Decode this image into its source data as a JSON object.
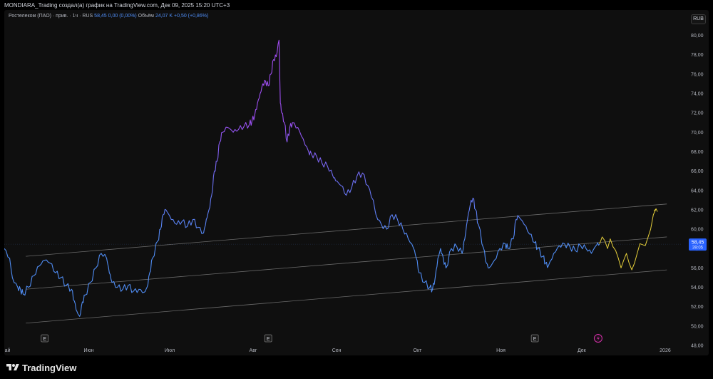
{
  "header": {
    "title": "MONDIARA_Trading создал(а) график на TradingView.com, Дек 09, 2025 15:20 UTC+3"
  },
  "legend": {
    "symbol": "Ростелеком (ПАО) · прив. · 1ч · RUS",
    "price": "58,45 0,00 (0,00%)",
    "volume_label": "Объём",
    "volume": "24,07 K +0,50 (+0,86%)"
  },
  "currency": "RUB",
  "footer": {
    "brand": "TradingView"
  },
  "colors": {
    "background": "#0f0f0f",
    "price_blue": "#4f8df5",
    "price_purple": "#a54bf3",
    "projection": "#e5cf3a",
    "channel": "#6a6a6a",
    "marker": "#d130a8",
    "last_price_badge": "#2962ff"
  },
  "chart_data": {
    "type": "line",
    "title": "",
    "xlabel": "",
    "ylabel": "",
    "ylim": [
      48,
      81
    ],
    "y_ticks": [
      "48,00",
      "50,00",
      "52,00",
      "54,00",
      "56,00",
      "58,00",
      "60,00",
      "62,00",
      "64,00",
      "66,00",
      "68,00",
      "70,00",
      "72,00",
      "74,00",
      "76,00",
      "78,00",
      "80,00"
    ],
    "x_ticks": [
      {
        "label": "Май",
        "t": 0.4
      },
      {
        "label": "Июн",
        "t": 31.4
      },
      {
        "label": "Июл",
        "t": 61.4
      },
      {
        "label": "Авг",
        "t": 92.4
      },
      {
        "label": "Сен",
        "t": 123.4
      },
      {
        "label": "Окт",
        "t": 153.4
      },
      {
        "label": "Ноя",
        "t": 184.4
      },
      {
        "label": "Дек",
        "t": 214.4
      },
      {
        "label": "2026",
        "t": 245.4
      }
    ],
    "series": [
      {
        "values": [
          [
            0,
            58
          ],
          [
            2,
            57
          ],
          [
            3,
            55
          ],
          [
            5,
            54
          ],
          [
            6,
            53.8
          ],
          [
            7,
            53.3
          ],
          [
            9,
            54
          ],
          [
            11,
            55.2
          ],
          [
            13,
            56.2
          ],
          [
            15,
            56.8
          ],
          [
            17,
            56.5
          ],
          [
            19,
            55.5
          ],
          [
            21,
            55
          ],
          [
            23,
            54.2
          ],
          [
            25,
            53.8
          ],
          [
            26,
            52.6
          ],
          [
            27,
            51.5
          ],
          [
            28,
            51
          ],
          [
            29,
            52.5
          ],
          [
            30,
            53.2
          ],
          [
            32,
            54.5
          ],
          [
            34,
            56
          ],
          [
            36,
            57.5
          ],
          [
            38,
            57
          ],
          [
            39,
            55.5
          ],
          [
            40,
            54.5
          ],
          [
            42,
            54
          ],
          [
            44,
            53.8
          ],
          [
            46,
            54.2
          ],
          [
            48,
            53.6
          ],
          [
            50,
            53.8
          ],
          [
            52,
            53.5
          ],
          [
            53,
            54
          ],
          [
            54,
            55.5
          ],
          [
            55,
            57
          ],
          [
            57,
            58.8
          ],
          [
            58,
            60
          ],
          [
            59,
            61.5
          ],
          [
            60,
            62
          ],
          [
            62,
            61
          ],
          [
            64,
            60.5
          ],
          [
            66,
            60.8
          ],
          [
            68,
            60.3
          ],
          [
            70,
            61
          ],
          [
            72,
            60.2
          ],
          [
            74,
            59.6
          ],
          [
            75,
            61
          ],
          [
            76,
            62
          ],
          [
            77,
            63.5
          ],
          [
            78,
            66
          ],
          [
            79,
            67
          ],
          [
            80,
            69
          ],
          [
            81,
            70
          ],
          [
            83,
            70.5
          ],
          [
            85,
            70
          ],
          [
            87,
            70.3
          ],
          [
            89,
            70.6
          ],
          [
            91,
            70.8
          ],
          [
            92,
            71.2
          ],
          [
            93,
            71.8
          ],
          [
            94,
            73
          ],
          [
            95,
            74
          ],
          [
            96,
            75
          ],
          [
            97,
            75.3
          ],
          [
            98,
            74.8
          ],
          [
            99,
            76
          ],
          [
            100,
            77.5
          ],
          [
            101,
            77.8
          ],
          [
            102,
            79.5
          ],
          [
            102.5,
            73
          ],
          [
            103,
            72
          ],
          [
            104,
            71
          ],
          [
            105,
            69
          ],
          [
            106,
            70.5
          ],
          [
            107,
            71
          ],
          [
            109,
            70.5
          ],
          [
            111,
            69.3
          ],
          [
            113,
            68
          ],
          [
            114,
            67.8
          ],
          [
            116,
            67.5
          ],
          [
            118,
            66.8
          ],
          [
            120,
            66.5
          ],
          [
            122,
            65.5
          ],
          [
            123,
            65
          ],
          [
            125,
            64.5
          ],
          [
            127,
            63.5
          ],
          [
            129,
            64.3
          ],
          [
            131,
            65.5
          ],
          [
            133,
            65.8
          ],
          [
            135,
            64.5
          ],
          [
            137,
            63
          ],
          [
            138,
            61.5
          ],
          [
            140,
            60.5
          ],
          [
            142,
            60
          ],
          [
            144,
            61.5
          ],
          [
            146,
            61
          ],
          [
            148,
            60
          ],
          [
            150,
            59
          ],
          [
            152,
            58
          ],
          [
            153,
            57
          ],
          [
            154,
            55.5
          ],
          [
            156,
            54.5
          ],
          [
            158,
            54
          ],
          [
            159,
            53.8
          ],
          [
            160,
            55
          ],
          [
            161,
            57
          ],
          [
            162,
            58
          ],
          [
            163,
            57
          ],
          [
            164,
            56
          ],
          [
            166,
            58
          ],
          [
            168,
            58.2
          ],
          [
            170,
            57.5
          ],
          [
            171,
            59
          ],
          [
            172,
            61
          ],
          [
            173,
            62.5
          ],
          [
            174,
            63.2
          ],
          [
            175,
            62
          ],
          [
            176,
            60.5
          ],
          [
            178,
            58
          ],
          [
            179,
            56.5
          ],
          [
            180,
            56
          ],
          [
            182,
            56.8
          ],
          [
            184,
            58
          ],
          [
            186,
            58.5
          ],
          [
            187,
            58
          ],
          [
            189,
            59
          ],
          [
            190,
            61
          ],
          [
            191,
            61.3
          ],
          [
            193,
            60.5
          ],
          [
            195,
            59.5
          ],
          [
            197,
            58.6
          ],
          [
            198,
            58
          ],
          [
            200,
            57.2
          ],
          [
            201,
            56.5
          ],
          [
            202,
            56.2
          ],
          [
            204,
            57.5
          ],
          [
            206,
            58.3
          ],
          [
            208,
            58.5
          ],
          [
            210,
            58.2
          ],
          [
            212,
            57.8
          ],
          [
            214,
            58.3
          ],
          [
            216,
            58
          ],
          [
            218,
            57.5
          ],
          [
            220,
            58.4
          ],
          [
            221,
            58.45
          ]
        ]
      },
      {
        "values": [
          [
            221,
            58.45
          ],
          [
            222,
            59.2
          ],
          [
            223,
            58.8
          ],
          [
            224,
            58
          ],
          [
            225,
            59
          ],
          [
            226,
            58.2
          ],
          [
            227,
            57.8
          ],
          [
            228,
            57
          ],
          [
            229,
            56
          ],
          [
            230,
            56.8
          ],
          [
            231,
            57.5
          ],
          [
            232,
            56.5
          ],
          [
            233,
            55.8
          ],
          [
            234,
            56.5
          ],
          [
            235,
            57.5
          ],
          [
            236,
            58.5
          ],
          [
            238,
            58.3
          ],
          [
            240,
            60
          ],
          [
            241,
            61.5
          ],
          [
            242,
            62.1
          ]
        ]
      }
    ],
    "channel_lines": [
      {
        "from": [
          8,
          57.2
        ],
        "to": [
          246,
          62.6
        ]
      },
      {
        "from": [
          8,
          53.8
        ],
        "to": [
          246,
          59.2
        ]
      },
      {
        "from": [
          8,
          50.3
        ],
        "to": [
          246,
          55.8
        ]
      }
    ],
    "last_price": {
      "value": "58,45",
      "timer": "39:05",
      "y": 58.45
    },
    "event_markers": [
      {
        "label": "E",
        "t": 15
      },
      {
        "label": "E",
        "t": 98
      },
      {
        "label": "E",
        "t": 197
      }
    ],
    "flash_marker": {
      "t": 220.5
    }
  }
}
